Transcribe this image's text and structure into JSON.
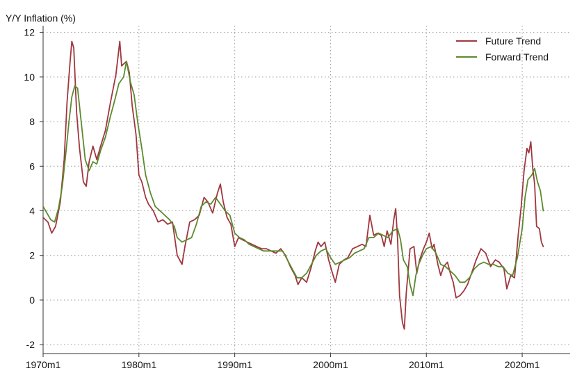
{
  "chart_data": {
    "type": "line",
    "title": "",
    "xlabel": "",
    "ylabel": "Y/Y Inflation (%)",
    "xlim": [
      1970,
      2025
    ],
    "ylim": [
      -2.4,
      12.3
    ],
    "yticks": [
      -2,
      0,
      2,
      4,
      6,
      8,
      10,
      12
    ],
    "xticks": [
      {
        "value": 1970,
        "label": "1970m1"
      },
      {
        "value": 1980,
        "label": "1980m1"
      },
      {
        "value": 1990,
        "label": "1990m1"
      },
      {
        "value": 2000,
        "label": "2000m1"
      },
      {
        "value": 2010,
        "label": "2010m1"
      },
      {
        "value": 2020,
        "label": "2020m1"
      }
    ],
    "grid": true,
    "legend_position": "top-right",
    "series": [
      {
        "name": "Future Trend",
        "color": "#a0363e",
        "points": [
          [
            1970.0,
            3.7
          ],
          [
            1970.5,
            3.5
          ],
          [
            1970.9,
            3.0
          ],
          [
            1971.3,
            3.3
          ],
          [
            1971.8,
            4.4
          ],
          [
            1972.2,
            6.3
          ],
          [
            1972.5,
            8.9
          ],
          [
            1972.8,
            10.6
          ],
          [
            1973.0,
            11.6
          ],
          [
            1973.2,
            11.3
          ],
          [
            1973.5,
            8.4
          ],
          [
            1973.8,
            6.8
          ],
          [
            1974.2,
            5.3
          ],
          [
            1974.5,
            5.1
          ],
          [
            1974.8,
            6.2
          ],
          [
            1975.2,
            6.9
          ],
          [
            1975.6,
            6.3
          ],
          [
            1976.0,
            6.9
          ],
          [
            1976.5,
            7.6
          ],
          [
            1977.0,
            8.8
          ],
          [
            1977.6,
            10.1
          ],
          [
            1978.0,
            11.6
          ],
          [
            1978.2,
            10.5
          ],
          [
            1978.7,
            10.7
          ],
          [
            1979.0,
            10.2
          ],
          [
            1979.3,
            8.7
          ],
          [
            1979.7,
            7.4
          ],
          [
            1980.0,
            5.6
          ],
          [
            1980.3,
            5.3
          ],
          [
            1980.7,
            4.6
          ],
          [
            1981.0,
            4.3
          ],
          [
            1981.5,
            4.0
          ],
          [
            1982.0,
            3.5
          ],
          [
            1982.5,
            3.6
          ],
          [
            1983.0,
            3.4
          ],
          [
            1983.5,
            3.5
          ],
          [
            1984.0,
            2.0
          ],
          [
            1984.5,
            1.6
          ],
          [
            1984.8,
            2.4
          ],
          [
            1985.3,
            3.5
          ],
          [
            1985.8,
            3.6
          ],
          [
            1986.3,
            3.8
          ],
          [
            1986.8,
            4.6
          ],
          [
            1987.2,
            4.4
          ],
          [
            1987.7,
            3.9
          ],
          [
            1988.2,
            4.8
          ],
          [
            1988.5,
            5.2
          ],
          [
            1988.8,
            4.4
          ],
          [
            1989.2,
            3.7
          ],
          [
            1989.6,
            3.4
          ],
          [
            1990.0,
            2.4
          ],
          [
            1990.4,
            2.8
          ],
          [
            1990.8,
            2.7
          ],
          [
            1991.3,
            2.6
          ],
          [
            1991.8,
            2.5
          ],
          [
            1992.3,
            2.4
          ],
          [
            1992.8,
            2.3
          ],
          [
            1993.3,
            2.3
          ],
          [
            1993.8,
            2.2
          ],
          [
            1994.3,
            2.1
          ],
          [
            1994.8,
            2.3
          ],
          [
            1995.3,
            2.0
          ],
          [
            1995.8,
            1.5
          ],
          [
            1996.3,
            1.1
          ],
          [
            1996.6,
            0.7
          ],
          [
            1997.0,
            1.0
          ],
          [
            1997.5,
            0.8
          ],
          [
            1998.0,
            1.5
          ],
          [
            1998.4,
            2.2
          ],
          [
            1998.7,
            2.6
          ],
          [
            1999.0,
            2.4
          ],
          [
            1999.4,
            2.6
          ],
          [
            1999.8,
            1.8
          ],
          [
            2000.2,
            1.2
          ],
          [
            2000.5,
            0.8
          ],
          [
            2000.9,
            1.6
          ],
          [
            2001.4,
            1.8
          ],
          [
            2001.8,
            1.9
          ],
          [
            2002.3,
            2.3
          ],
          [
            2002.8,
            2.4
          ],
          [
            2003.3,
            2.5
          ],
          [
            2003.7,
            2.4
          ],
          [
            2004.1,
            3.8
          ],
          [
            2004.5,
            2.9
          ],
          [
            2004.9,
            3.0
          ],
          [
            2005.3,
            2.9
          ],
          [
            2005.6,
            2.4
          ],
          [
            2005.9,
            3.1
          ],
          [
            2006.3,
            2.5
          ],
          [
            2006.6,
            3.6
          ],
          [
            2006.8,
            4.1
          ],
          [
            2007.0,
            2.7
          ],
          [
            2007.2,
            0.2
          ],
          [
            2007.5,
            -1.0
          ],
          [
            2007.7,
            -1.3
          ],
          [
            2007.9,
            0.3
          ],
          [
            2008.3,
            2.3
          ],
          [
            2008.7,
            2.4
          ],
          [
            2009.0,
            1.2
          ],
          [
            2009.3,
            1.8
          ],
          [
            2009.7,
            2.3
          ],
          [
            2010.0,
            2.6
          ],
          [
            2010.3,
            3.0
          ],
          [
            2010.6,
            2.3
          ],
          [
            2010.8,
            2.5
          ],
          [
            2011.2,
            1.6
          ],
          [
            2011.5,
            1.1
          ],
          [
            2011.8,
            1.5
          ],
          [
            2012.2,
            1.7
          ],
          [
            2012.5,
            1.2
          ],
          [
            2012.8,
            0.8
          ],
          [
            2013.1,
            0.1
          ],
          [
            2013.5,
            0.2
          ],
          [
            2013.9,
            0.4
          ],
          [
            2014.3,
            0.7
          ],
          [
            2014.8,
            1.3
          ],
          [
            2015.2,
            1.8
          ],
          [
            2015.7,
            2.3
          ],
          [
            2016.2,
            2.1
          ],
          [
            2016.7,
            1.5
          ],
          [
            2017.2,
            1.8
          ],
          [
            2017.6,
            1.7
          ],
          [
            2018.1,
            1.4
          ],
          [
            2018.4,
            0.5
          ],
          [
            2018.8,
            1.1
          ],
          [
            2019.2,
            1.0
          ],
          [
            2019.6,
            3.0
          ],
          [
            2019.9,
            4.2
          ],
          [
            2020.2,
            5.8
          ],
          [
            2020.5,
            6.8
          ],
          [
            2020.7,
            6.6
          ],
          [
            2020.9,
            7.1
          ],
          [
            2021.1,
            5.9
          ],
          [
            2021.3,
            5.2
          ],
          [
            2021.5,
            3.3
          ],
          [
            2021.8,
            3.2
          ],
          [
            2022.0,
            2.6
          ],
          [
            2022.2,
            2.4
          ]
        ]
      },
      {
        "name": "Forward Trend",
        "color": "#5b8a2e",
        "points": [
          [
            1970.0,
            4.2
          ],
          [
            1970.4,
            3.9
          ],
          [
            1970.8,
            3.6
          ],
          [
            1971.2,
            3.5
          ],
          [
            1971.6,
            4.1
          ],
          [
            1972.0,
            5.1
          ],
          [
            1972.4,
            6.7
          ],
          [
            1972.7,
            8.0
          ],
          [
            1973.0,
            9.1
          ],
          [
            1973.3,
            9.6
          ],
          [
            1973.6,
            9.5
          ],
          [
            1974.0,
            7.9
          ],
          [
            1974.4,
            6.3
          ],
          [
            1974.8,
            5.8
          ],
          [
            1975.2,
            6.2
          ],
          [
            1975.6,
            6.1
          ],
          [
            1976.0,
            6.7
          ],
          [
            1976.5,
            7.3
          ],
          [
            1977.0,
            8.2
          ],
          [
            1977.5,
            9.0
          ],
          [
            1977.9,
            9.7
          ],
          [
            1978.4,
            10.0
          ],
          [
            1978.7,
            10.7
          ],
          [
            1979.1,
            9.8
          ],
          [
            1979.5,
            9.2
          ],
          [
            1979.9,
            7.9
          ],
          [
            1980.3,
            6.8
          ],
          [
            1980.7,
            5.6
          ],
          [
            1981.2,
            4.8
          ],
          [
            1981.7,
            4.2
          ],
          [
            1982.2,
            4.0
          ],
          [
            1982.7,
            3.8
          ],
          [
            1983.2,
            3.6
          ],
          [
            1983.7,
            3.3
          ],
          [
            1984.0,
            2.8
          ],
          [
            1984.5,
            2.6
          ],
          [
            1985.0,
            2.7
          ],
          [
            1985.5,
            2.8
          ],
          [
            1986.0,
            3.4
          ],
          [
            1986.5,
            4.2
          ],
          [
            1987.0,
            4.4
          ],
          [
            1987.5,
            4.3
          ],
          [
            1988.0,
            4.6
          ],
          [
            1988.5,
            4.3
          ],
          [
            1989.0,
            4.0
          ],
          [
            1989.5,
            3.8
          ],
          [
            1990.0,
            3.0
          ],
          [
            1990.5,
            2.8
          ],
          [
            1991.0,
            2.7
          ],
          [
            1991.5,
            2.5
          ],
          [
            1992.0,
            2.4
          ],
          [
            1992.5,
            2.3
          ],
          [
            1993.0,
            2.2
          ],
          [
            1993.5,
            2.2
          ],
          [
            1994.0,
            2.2
          ],
          [
            1994.5,
            2.2
          ],
          [
            1995.0,
            2.2
          ],
          [
            1995.5,
            1.8
          ],
          [
            1996.0,
            1.4
          ],
          [
            1996.5,
            1.0
          ],
          [
            1997.0,
            1.0
          ],
          [
            1997.5,
            1.2
          ],
          [
            1998.0,
            1.6
          ],
          [
            1998.5,
            2.0
          ],
          [
            1999.0,
            2.2
          ],
          [
            1999.5,
            2.3
          ],
          [
            2000.0,
            1.9
          ],
          [
            2000.5,
            1.6
          ],
          [
            2001.0,
            1.7
          ],
          [
            2001.5,
            1.8
          ],
          [
            2002.0,
            1.9
          ],
          [
            2002.5,
            2.1
          ],
          [
            2003.0,
            2.2
          ],
          [
            2003.5,
            2.3
          ],
          [
            2004.0,
            2.8
          ],
          [
            2004.5,
            2.8
          ],
          [
            2005.0,
            3.0
          ],
          [
            2005.5,
            2.9
          ],
          [
            2006.0,
            2.8
          ],
          [
            2006.5,
            3.1
          ],
          [
            2007.0,
            3.2
          ],
          [
            2007.3,
            2.7
          ],
          [
            2007.6,
            1.8
          ],
          [
            2008.0,
            1.5
          ],
          [
            2008.3,
            0.7
          ],
          [
            2008.6,
            0.2
          ],
          [
            2008.9,
            1.1
          ],
          [
            2009.2,
            1.6
          ],
          [
            2009.6,
            2.0
          ],
          [
            2010.0,
            2.3
          ],
          [
            2010.5,
            2.4
          ],
          [
            2011.0,
            2.1
          ],
          [
            2011.5,
            1.6
          ],
          [
            2012.0,
            1.5
          ],
          [
            2012.5,
            1.3
          ],
          [
            2013.0,
            1.1
          ],
          [
            2013.5,
            0.8
          ],
          [
            2014.0,
            0.8
          ],
          [
            2014.5,
            1.0
          ],
          [
            2015.0,
            1.4
          ],
          [
            2015.5,
            1.6
          ],
          [
            2016.0,
            1.7
          ],
          [
            2016.5,
            1.6
          ],
          [
            2017.0,
            1.6
          ],
          [
            2017.5,
            1.5
          ],
          [
            2018.0,
            1.5
          ],
          [
            2018.5,
            1.2
          ],
          [
            2019.0,
            1.1
          ],
          [
            2019.5,
            1.9
          ],
          [
            2020.0,
            3.2
          ],
          [
            2020.3,
            4.6
          ],
          [
            2020.6,
            5.4
          ],
          [
            2021.0,
            5.6
          ],
          [
            2021.3,
            5.9
          ],
          [
            2021.6,
            5.3
          ],
          [
            2021.9,
            4.9
          ],
          [
            2022.2,
            4.0
          ]
        ]
      }
    ]
  }
}
